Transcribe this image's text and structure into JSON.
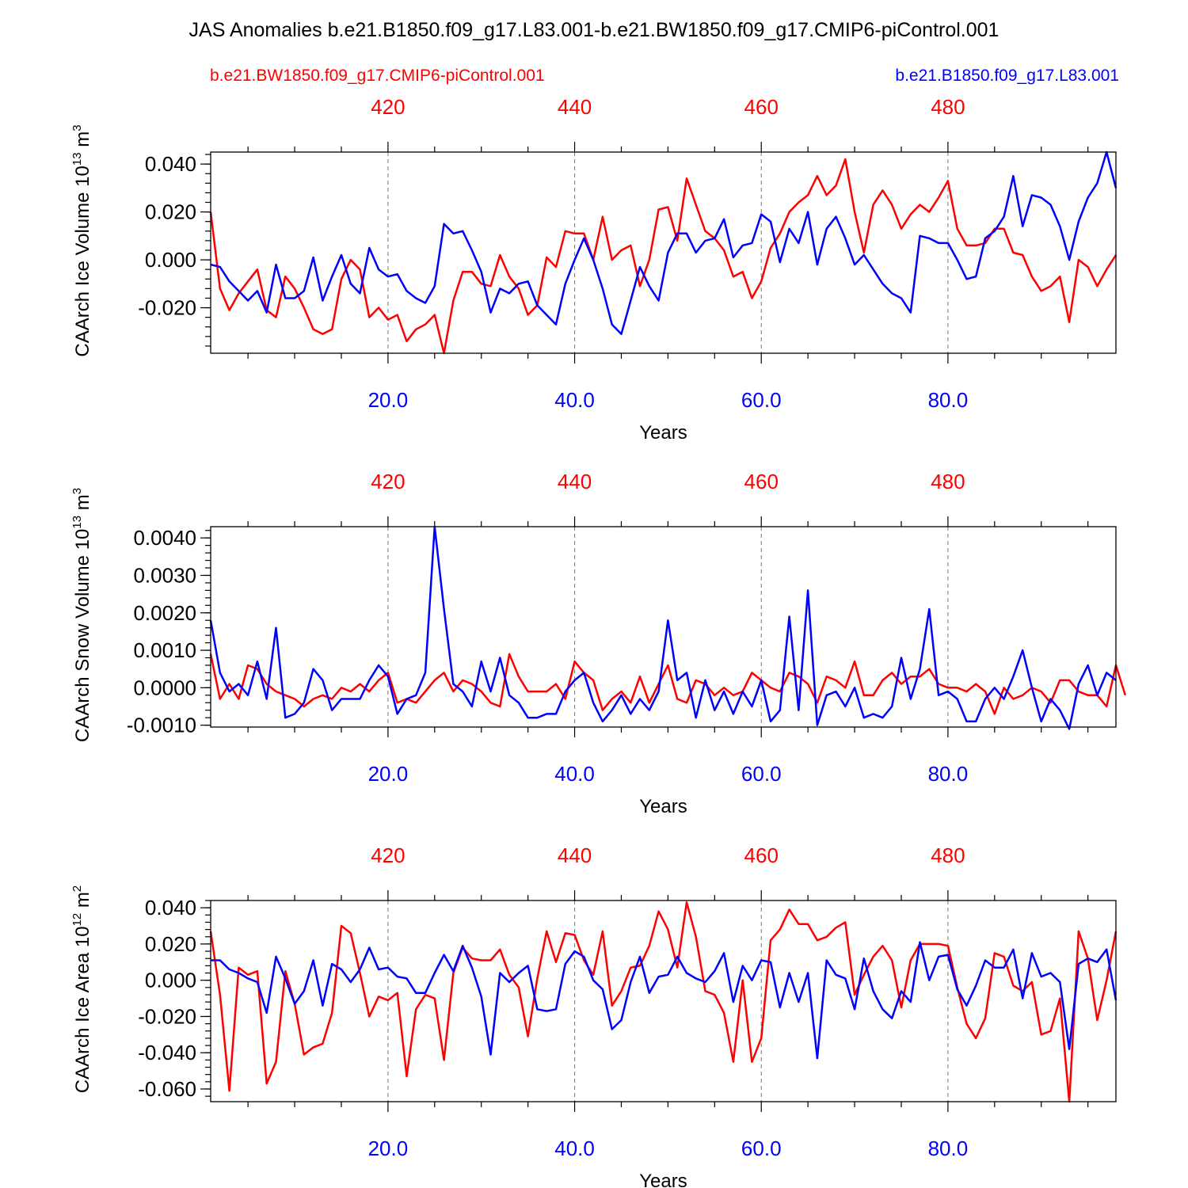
{
  "page_title": "JAS Anomalies b.e21.B1850.f09_g17.L83.001-b.e21.BW1850.f09_g17.CMIP6-piControl.001",
  "legend": {
    "red_label": "b.e21.BW1850.f09_g17.CMIP6-piControl.001",
    "blue_label": "b.e21.B1850.f09_g17.L83.001"
  },
  "colors": {
    "red_series": "#ff0000",
    "blue_series": "#0000ff",
    "frame": "#000000",
    "grid": "#777777"
  },
  "chart_data": [
    {
      "type": "line",
      "ylabel": "CAArch Ice Volume",
      "yunit_base": "10",
      "yunit_exp": "13",
      "yunit_tail": "m",
      "yunit_tail_exp": "3",
      "xlabel": "Years",
      "xlim": [
        1,
        98
      ],
      "ylim": [
        -0.039,
        0.045
      ],
      "top_xlim": [
        401,
        498
      ],
      "yticks": [
        -0.02,
        0.0,
        0.02,
        0.04
      ],
      "ytick_labels": [
        "-0.020",
        "0.000",
        "0.020",
        "0.040"
      ],
      "yminor_step": 0.004,
      "xticks": [
        20,
        40,
        60,
        80
      ],
      "xtick_labels": [
        "20.0",
        "40.0",
        "60.0",
        "80.0"
      ],
      "top_xticks": [
        420,
        440,
        460,
        480
      ],
      "top_xtick_labels": [
        "420",
        "440",
        "460",
        "480"
      ],
      "series": [
        {
          "name": "b.e21.BW1850.f09_g17.CMIP6-piControl.001",
          "color": "red",
          "values": [
            0.02,
            -0.012,
            -0.021,
            -0.014,
            -0.009,
            -0.004,
            -0.021,
            -0.024,
            -0.007,
            -0.012,
            -0.02,
            -0.029,
            -0.031,
            -0.029,
            -0.008,
            0.0,
            -0.004,
            -0.024,
            -0.02,
            -0.025,
            -0.023,
            -0.034,
            -0.029,
            -0.027,
            -0.023,
            -0.039,
            -0.017,
            -0.005,
            -0.005,
            -0.01,
            -0.011,
            0.002,
            -0.007,
            -0.012,
            -0.023,
            -0.019,
            0.001,
            -0.003,
            0.012,
            0.011,
            0.011,
            0.0,
            0.018,
            0.0,
            0.004,
            0.006,
            -0.011,
            0.0,
            0.021,
            0.022,
            0.008,
            0.034,
            0.023,
            0.012,
            0.009,
            0.004,
            -0.007,
            -0.005,
            -0.016,
            -0.009,
            0.005,
            0.011,
            0.02,
            0.024,
            0.027,
            0.035,
            0.027,
            0.031,
            0.042,
            0.02,
            0.003,
            0.023,
            0.029,
            0.023,
            0.013,
            0.019,
            0.023,
            0.02,
            0.026,
            0.033,
            0.013,
            0.006,
            0.006,
            0.007,
            0.013,
            0.013,
            0.003,
            0.002,
            -0.007,
            -0.013,
            -0.011,
            -0.007,
            -0.026,
            0.0,
            -0.003,
            -0.011,
            -0.004,
            0.002
          ]
        },
        {
          "name": "b.e21.B1850.f09_g17.L83.001",
          "color": "blue",
          "values": [
            -0.002,
            -0.003,
            -0.009,
            -0.013,
            -0.017,
            -0.013,
            -0.022,
            -0.002,
            -0.016,
            -0.016,
            -0.013,
            0.001,
            -0.017,
            -0.007,
            0.002,
            -0.01,
            -0.014,
            0.005,
            -0.004,
            -0.007,
            -0.006,
            -0.013,
            -0.016,
            -0.018,
            -0.011,
            0.015,
            0.011,
            0.012,
            0.004,
            -0.005,
            -0.022,
            -0.012,
            -0.014,
            -0.01,
            -0.009,
            -0.019,
            -0.023,
            -0.027,
            -0.01,
            0.0,
            0.009,
            0.0,
            -0.012,
            -0.027,
            -0.031,
            -0.017,
            -0.003,
            -0.011,
            -0.017,
            0.003,
            0.011,
            0.011,
            0.003,
            0.008,
            0.009,
            0.017,
            0.001,
            0.006,
            0.007,
            0.019,
            0.016,
            -0.001,
            0.013,
            0.007,
            0.02,
            -0.002,
            0.013,
            0.018,
            0.009,
            -0.002,
            0.002,
            -0.004,
            -0.01,
            -0.014,
            -0.016,
            -0.022,
            0.01,
            0.009,
            0.007,
            0.007,
            0.0,
            -0.008,
            -0.007,
            0.009,
            0.012,
            0.018,
            0.035,
            0.014,
            0.027,
            0.026,
            0.023,
            0.014,
            0.0,
            0.016,
            0.026,
            0.032,
            0.045,
            0.03
          ]
        }
      ]
    },
    {
      "type": "line",
      "ylabel": "CAArch Snow Volume",
      "yunit_base": "10",
      "yunit_exp": "13",
      "yunit_tail": "m",
      "yunit_tail_exp": "3",
      "xlabel": "Years",
      "xlim": [
        1,
        98
      ],
      "ylim": [
        -0.00105,
        0.0043
      ],
      "top_xlim": [
        401,
        498
      ],
      "yticks": [
        -0.001,
        0.0,
        0.001,
        0.002,
        0.003,
        0.004
      ],
      "ytick_labels": [
        "-0.0010",
        "0.0000",
        "0.0010",
        "0.0020",
        "0.0030",
        "0.0040"
      ],
      "yminor_step": 0.0002,
      "xticks": [
        20,
        40,
        60,
        80
      ],
      "xtick_labels": [
        "20.0",
        "40.0",
        "60.0",
        "80.0"
      ],
      "top_xticks": [
        420,
        440,
        460,
        480
      ],
      "top_xtick_labels": [
        "420",
        "440",
        "460",
        "480"
      ],
      "series": [
        {
          "name": "b.e21.BW1850.f09_g17.CMIP6-piControl.001",
          "color": "red",
          "values": [
            0.0009,
            -0.0003,
            0.0001,
            -0.0003,
            0.0006,
            0.0005,
            0.0001,
            -0.0001,
            -0.0002,
            -0.0003,
            -0.0005,
            -0.0003,
            -0.0002,
            -0.0003,
            0.0,
            -0.0001,
            0.0001,
            -0.0001,
            0.0002,
            0.0004,
            -0.0004,
            -0.0003,
            -0.0004,
            -0.0001,
            0.0002,
            0.0004,
            -0.0001,
            0.0002,
            0.0001,
            -0.0001,
            -0.0004,
            -0.0005,
            0.0009,
            0.0003,
            -0.0001,
            -0.0001,
            -0.0001,
            0.0001,
            -0.0003,
            0.0007,
            0.0004,
            0.0002,
            -0.0006,
            -0.0003,
            -0.0001,
            -0.0004,
            0.0003,
            -0.0004,
            0.0001,
            0.0006,
            -0.0003,
            -0.0004,
            0.0002,
            0.0001,
            -0.0002,
            0.0,
            -0.0002,
            -0.0001,
            0.0004,
            0.0002,
            0.0,
            -0.0001,
            0.0004,
            0.0003,
            0.0001,
            -0.0004,
            0.0003,
            0.0002,
            0.0,
            0.0007,
            -0.0002,
            -0.0002,
            0.0002,
            0.0004,
            0.0001,
            0.0003,
            0.0003,
            0.0005,
            0.0001,
            0.0,
            0.0,
            -0.0001,
            0.0001,
            -0.0001,
            -0.0007,
            0.0,
            -0.0003,
            -0.0002,
            0.0,
            -0.0001,
            -0.0004,
            0.0002,
            0.0002,
            -0.0001,
            -0.0002,
            -0.0002,
            -0.0005,
            0.0006,
            -0.0002
          ]
        },
        {
          "name": "b.e21.B1850.f09_g17.L83.001",
          "color": "blue",
          "values": [
            0.0018,
            0.0004,
            -0.0001,
            0.0001,
            -0.0002,
            0.0007,
            -0.0003,
            0.0016,
            -0.0008,
            -0.0007,
            -0.0004,
            0.0005,
            0.0002,
            -0.0006,
            -0.0003,
            -0.0003,
            -0.0003,
            0.0002,
            0.0006,
            0.0003,
            -0.0007,
            -0.0003,
            -0.0002,
            0.0004,
            0.0043,
            0.0021,
            0.0001,
            -0.0001,
            -0.0005,
            0.0007,
            -0.0001,
            0.0008,
            -0.0002,
            -0.0004,
            -0.0008,
            -0.0008,
            -0.0007,
            -0.0007,
            -0.0001,
            0.0002,
            0.0004,
            -0.0004,
            -0.0009,
            -0.0006,
            -0.0002,
            -0.0007,
            -0.0003,
            -0.0006,
            -0.0001,
            0.0018,
            0.0002,
            0.0004,
            -0.0008,
            0.0002,
            -0.0006,
            -0.0001,
            -0.0007,
            -0.0001,
            -0.0005,
            0.0002,
            -0.0009,
            -0.0006,
            0.0019,
            -0.0006,
            0.0026,
            -0.001,
            -0.0002,
            -0.0001,
            -0.0005,
            0.0,
            -0.0008,
            -0.0007,
            -0.0008,
            -0.0005,
            0.0008,
            -0.0003,
            0.0005,
            0.0021,
            -0.0002,
            -0.0001,
            -0.0003,
            -0.0009,
            -0.0009,
            -0.0003,
            0.0,
            -0.0003,
            0.0003,
            0.001,
            0.0,
            -0.0009,
            -0.0003,
            -0.0006,
            -0.0011,
            0.0001,
            0.0006,
            -0.0002,
            0.0004,
            0.0002
          ]
        }
      ]
    },
    {
      "type": "line",
      "ylabel": "CAArch Ice Area",
      "yunit_base": "10",
      "yunit_exp": "12",
      "yunit_tail": "m",
      "yunit_tail_exp": "2",
      "xlabel": "Years",
      "xlim": [
        1,
        98
      ],
      "ylim": [
        -0.067,
        0.044
      ],
      "top_xlim": [
        401,
        498
      ],
      "yticks": [
        -0.06,
        -0.04,
        -0.02,
        0.0,
        0.02,
        0.04
      ],
      "ytick_labels": [
        "-0.060",
        "-0.040",
        "-0.020",
        "0.000",
        "0.020",
        "0.040"
      ],
      "yminor_step": 0.004,
      "xticks": [
        20,
        40,
        60,
        80
      ],
      "xtick_labels": [
        "20.0",
        "40.0",
        "60.0",
        "80.0"
      ],
      "top_xticks": [
        420,
        440,
        460,
        480
      ],
      "top_xtick_labels": [
        "420",
        "440",
        "460",
        "480"
      ],
      "series": [
        {
          "name": "b.e21.BW1850.f09_g17.CMIP6-piControl.001",
          "color": "red",
          "values": [
            0.027,
            -0.008,
            -0.061,
            0.007,
            0.003,
            0.005,
            -0.057,
            -0.045,
            0.005,
            -0.013,
            -0.041,
            -0.037,
            -0.035,
            -0.018,
            0.03,
            0.026,
            0.004,
            -0.02,
            -0.009,
            -0.011,
            -0.007,
            -0.053,
            -0.016,
            -0.008,
            -0.01,
            -0.044,
            0.004,
            0.018,
            0.012,
            0.011,
            0.011,
            0.017,
            0.003,
            -0.004,
            -0.031,
            0.001,
            0.027,
            0.01,
            0.026,
            0.025,
            0.011,
            0.003,
            0.027,
            -0.014,
            -0.006,
            0.007,
            0.008,
            0.019,
            0.038,
            0.028,
            0.007,
            0.043,
            0.024,
            -0.006,
            -0.008,
            -0.018,
            -0.045,
            0.0,
            -0.045,
            -0.032,
            0.022,
            0.028,
            0.039,
            0.031,
            0.031,
            0.022,
            0.024,
            0.029,
            0.032,
            -0.008,
            0.003,
            0.013,
            0.019,
            0.011,
            -0.015,
            0.011,
            0.02,
            0.02,
            0.02,
            0.019,
            -0.004,
            -0.024,
            -0.032,
            -0.021,
            0.015,
            0.013,
            -0.003,
            -0.006,
            -0.001,
            -0.03,
            -0.028,
            -0.01,
            -0.067,
            0.027,
            0.012,
            -0.022,
            0.0,
            0.027
          ]
        },
        {
          "name": "b.e21.B1850.f09_g17.L83.001",
          "color": "blue",
          "values": [
            0.011,
            0.011,
            0.006,
            0.004,
            0.001,
            -0.001,
            -0.018,
            0.013,
            0.001,
            -0.013,
            -0.006,
            0.011,
            -0.014,
            0.009,
            0.006,
            -0.001,
            0.006,
            0.018,
            0.006,
            0.007,
            0.002,
            0.001,
            -0.007,
            -0.007,
            0.004,
            0.014,
            0.005,
            0.019,
            0.007,
            -0.009,
            -0.041,
            0.004,
            -0.001,
            0.004,
            0.008,
            -0.016,
            -0.017,
            -0.016,
            0.009,
            0.016,
            0.013,
            0.0,
            -0.005,
            -0.027,
            -0.022,
            -0.001,
            0.013,
            -0.007,
            0.002,
            0.003,
            0.013,
            0.004,
            0.001,
            -0.001,
            0.005,
            0.015,
            -0.012,
            0.008,
            0.0,
            0.011,
            0.01,
            -0.015,
            0.004,
            -0.012,
            0.004,
            -0.043,
            0.011,
            0.003,
            0.001,
            -0.016,
            0.012,
            -0.006,
            -0.016,
            -0.021,
            -0.006,
            -0.012,
            0.021,
            0.0,
            0.013,
            0.014,
            -0.005,
            -0.014,
            -0.003,
            0.011,
            0.007,
            0.007,
            0.017,
            -0.01,
            0.015,
            0.002,
            0.004,
            -0.001,
            -0.038,
            0.009,
            0.012,
            0.01,
            0.017,
            -0.011
          ]
        }
      ]
    }
  ]
}
